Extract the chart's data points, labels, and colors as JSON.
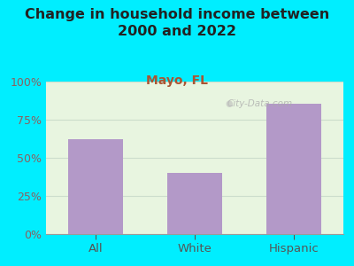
{
  "title": "Change in household income between\n2000 and 2022",
  "subtitle": "Mayo, FL",
  "categories": [
    "All",
    "White",
    "Hispanic"
  ],
  "values": [
    62,
    40,
    85
  ],
  "bar_color": "#b399c8",
  "background_color": "#00eeff",
  "plot_bg_color": "#e8f5e0",
  "ylim": [
    0,
    100
  ],
  "yticks": [
    0,
    25,
    50,
    75,
    100
  ],
  "title_fontsize": 11.5,
  "subtitle_fontsize": 10,
  "ytick_color": "#8b6060",
  "xtick_color": "#555555",
  "subtitle_color": "#aa5533",
  "watermark": "City-Data.com",
  "grid_color": "#ccddcc"
}
